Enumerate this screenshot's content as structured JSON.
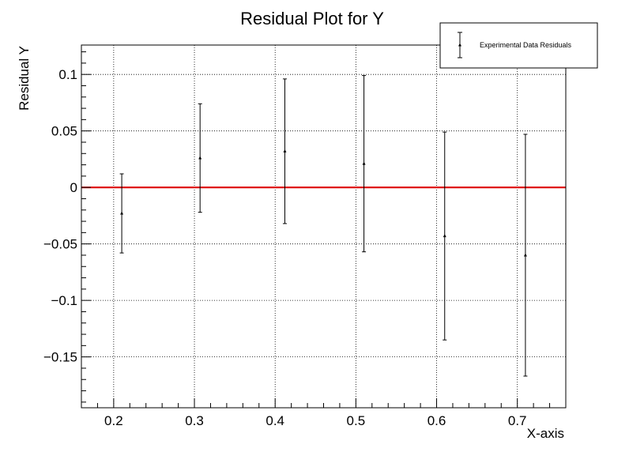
{
  "chart_data": {
    "type": "scatter",
    "title": "Residual Plot for Y",
    "xlabel": "X-axis",
    "ylabel": "Residual Y",
    "xlim": [
      0.16,
      0.76
    ],
    "ylim": [
      -0.195,
      0.126
    ],
    "x_ticks": [
      0.2,
      0.3,
      0.4,
      0.5,
      0.6,
      0.7
    ],
    "x_tick_labels": [
      "0.2",
      "0.3",
      "0.4",
      "0.5",
      "0.6",
      "0.7"
    ],
    "y_ticks": [
      0.1,
      0.05,
      0,
      -0.05,
      -0.1,
      -0.15
    ],
    "y_tick_labels": [
      "0.1",
      "0.05",
      "0",
      "−0.05",
      "−0.1",
      "−0.15"
    ],
    "grid": true,
    "legend_position": "top-right",
    "series": [
      {
        "name": "Experimental Data Residuals",
        "color": "#000000",
        "marker": "triangle-up",
        "points": [
          {
            "x": 0.21,
            "y": -0.023,
            "err": 0.035
          },
          {
            "x": 0.307,
            "y": 0.026,
            "err": 0.048
          },
          {
            "x": 0.412,
            "y": 0.032,
            "err": 0.064
          },
          {
            "x": 0.51,
            "y": 0.021,
            "err": 0.078
          },
          {
            "x": 0.61,
            "y": -0.043,
            "err": 0.092
          },
          {
            "x": 0.71,
            "y": -0.06,
            "err": 0.107
          }
        ]
      }
    ],
    "reference_line": {
      "y": 0,
      "color": "#dd0000"
    }
  }
}
